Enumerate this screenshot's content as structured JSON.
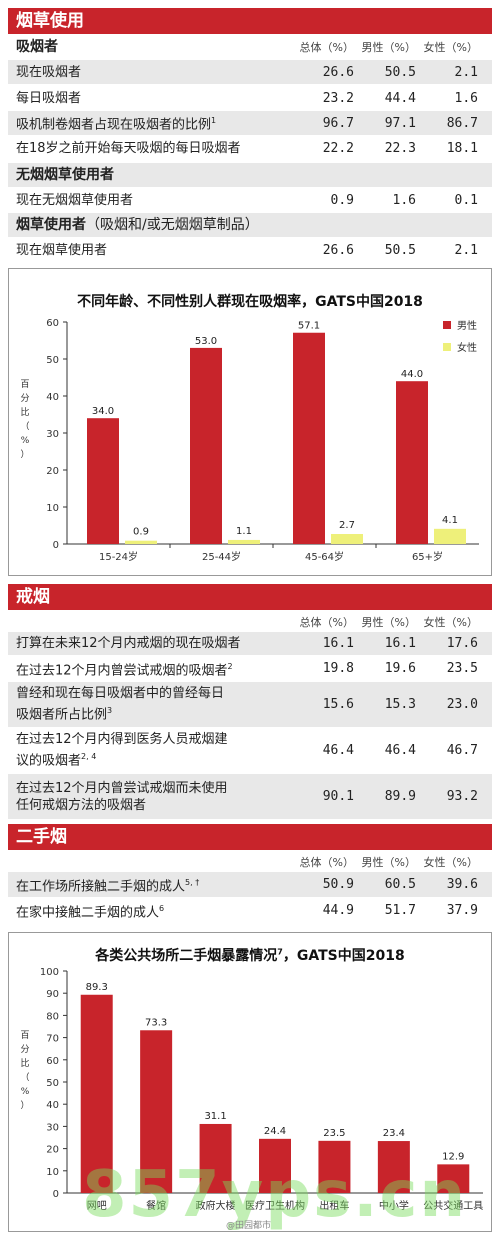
{
  "section_tobacco": {
    "title": "烟草使用",
    "smokers_heading": "吸烟者",
    "col_total": "总体（%）",
    "col_male": "男性（%）",
    "col_female": "女性（%）",
    "rows": [
      {
        "label": "现在吸烟者",
        "sup": "",
        "total": "26.6",
        "male": "50.5",
        "female": "2.1"
      },
      {
        "label": "每日吸烟者",
        "sup": "",
        "total": "23.2",
        "male": "44.4",
        "female": "1.6"
      },
      {
        "label": "吸机制卷烟者占现在吸烟者的比例",
        "sup": "1",
        "total": "96.7",
        "male": "97.1",
        "female": "86.7"
      },
      {
        "label": "在18岁之前开始每天吸烟的每日吸烟者",
        "sup": "",
        "total": "22.2",
        "male": "22.3",
        "female": "18.1"
      }
    ],
    "smokeless_heading": "无烟烟草使用者",
    "smokeless_row": {
      "label": "现在无烟烟草使用者",
      "total": "0.9",
      "male": "1.6",
      "female": "0.1"
    },
    "any_heading_bold": "烟草使用者",
    "any_heading_plain": "（吸烟和/或无烟烟草制品）",
    "any_row": {
      "label": "现在烟草使用者",
      "total": "26.6",
      "male": "50.5",
      "female": "2.1"
    }
  },
  "chart1_title": "不同年龄、不同性别人群现在吸烟率，GATS中国2018",
  "chart1_ylabel": "百分比（%）",
  "chart1_legend_male": "男性",
  "chart1_legend_female": "女性",
  "section_quit": {
    "title": "戒烟",
    "col_total": "总体（%）",
    "col_male": "男性（%）",
    "col_female": "女性（%）",
    "rows": [
      {
        "label": "打算在未来12个月内戒烟的现在吸烟者",
        "label2": "",
        "sup": "",
        "total": "16.1",
        "male": "16.1",
        "female": "17.6"
      },
      {
        "label": "在过去12个月内曾尝试戒烟的吸烟者",
        "label2": "",
        "sup": "2",
        "total": "19.8",
        "male": "19.6",
        "female": "23.5"
      },
      {
        "label": "曾经和现在每日吸烟者中的曾经每日",
        "label2": "吸烟者所占比例",
        "sup": "3",
        "total": "15.6",
        "male": "15.3",
        "female": "23.0"
      },
      {
        "label": "在过去12个月内得到医务人员戒烟建",
        "label2": "议的吸烟者",
        "sup": "2, 4",
        "total": "46.4",
        "male": "46.4",
        "female": "46.7"
      },
      {
        "label": "在过去12个月内曾尝试戒烟而未使用",
        "label2": "任何戒烟方法的吸烟者",
        "sup": "",
        "total": "90.1",
        "male": "89.9",
        "female": "93.2"
      }
    ]
  },
  "section_shs": {
    "title": "二手烟",
    "col_total": "总体（%）",
    "col_male": "男性（%）",
    "col_female": "女性（%）",
    "rows": [
      {
        "label": "在工作场所接触二手烟的成人",
        "sup": "5, †",
        "total": "50.9",
        "male": "60.5",
        "female": "39.6"
      },
      {
        "label": "在家中接触二手烟的成人",
        "sup": "6",
        "total": "44.9",
        "male": "51.7",
        "female": "37.9"
      }
    ]
  },
  "chart2_title": "各类公共场所二手烟暴露情况",
  "chart2_title_sup": "7",
  "chart2_title_suffix": "，GATS中国2018",
  "chart2_ylabel": "百分比（%）",
  "watermark": "857yps.cn",
  "watermark_small": "@田园都市",
  "colors": {
    "red": "#c8242b",
    "yellow": "#eef07a",
    "header": "#c8242b",
    "shade": "#e8e8e8"
  },
  "chart_data": [
    {
      "type": "bar",
      "title": "不同年龄、不同性别人群现在吸烟率，GATS中国2018",
      "ylabel": "百分比（%）",
      "xlabel": "",
      "categories": [
        "15-24岁",
        "25-44岁",
        "45-64岁",
        "65+岁"
      ],
      "series": [
        {
          "name": "男性",
          "values": [
            34.0,
            53.0,
            57.1,
            44.0
          ],
          "labels": [
            "34.0",
            "53.0",
            "57.1",
            "44.0"
          ]
        },
        {
          "name": "女性",
          "values": [
            0.9,
            1.1,
            2.7,
            4.1
          ],
          "labels": [
            "0.9",
            "1.1",
            "2.7",
            "4.1"
          ]
        }
      ],
      "ylim": [
        0,
        60
      ],
      "yticks": [
        "0",
        "10",
        "20",
        "30",
        "40",
        "50",
        "60"
      ],
      "legend": "top-right",
      "grid": false
    },
    {
      "type": "bar",
      "title": "各类公共场所二手烟暴露情况7，GATS中国2018",
      "ylabel": "百分比（%）",
      "xlabel": "",
      "categories": [
        "网吧",
        "餐馆",
        "政府大楼",
        "医疗卫生机构",
        "出租车",
        "中小学",
        "公共交通工具"
      ],
      "values": [
        89.3,
        73.3,
        31.1,
        24.4,
        23.5,
        23.4,
        12.9
      ],
      "labels": [
        "89.3",
        "73.3",
        "31.1",
        "24.4",
        "23.5",
        "23.4",
        "12.9"
      ],
      "ylim": [
        0,
        100
      ],
      "yticks": [
        "0",
        "10",
        "20",
        "30",
        "40",
        "50",
        "60",
        "70",
        "80",
        "90",
        "100"
      ],
      "grid": false
    }
  ]
}
